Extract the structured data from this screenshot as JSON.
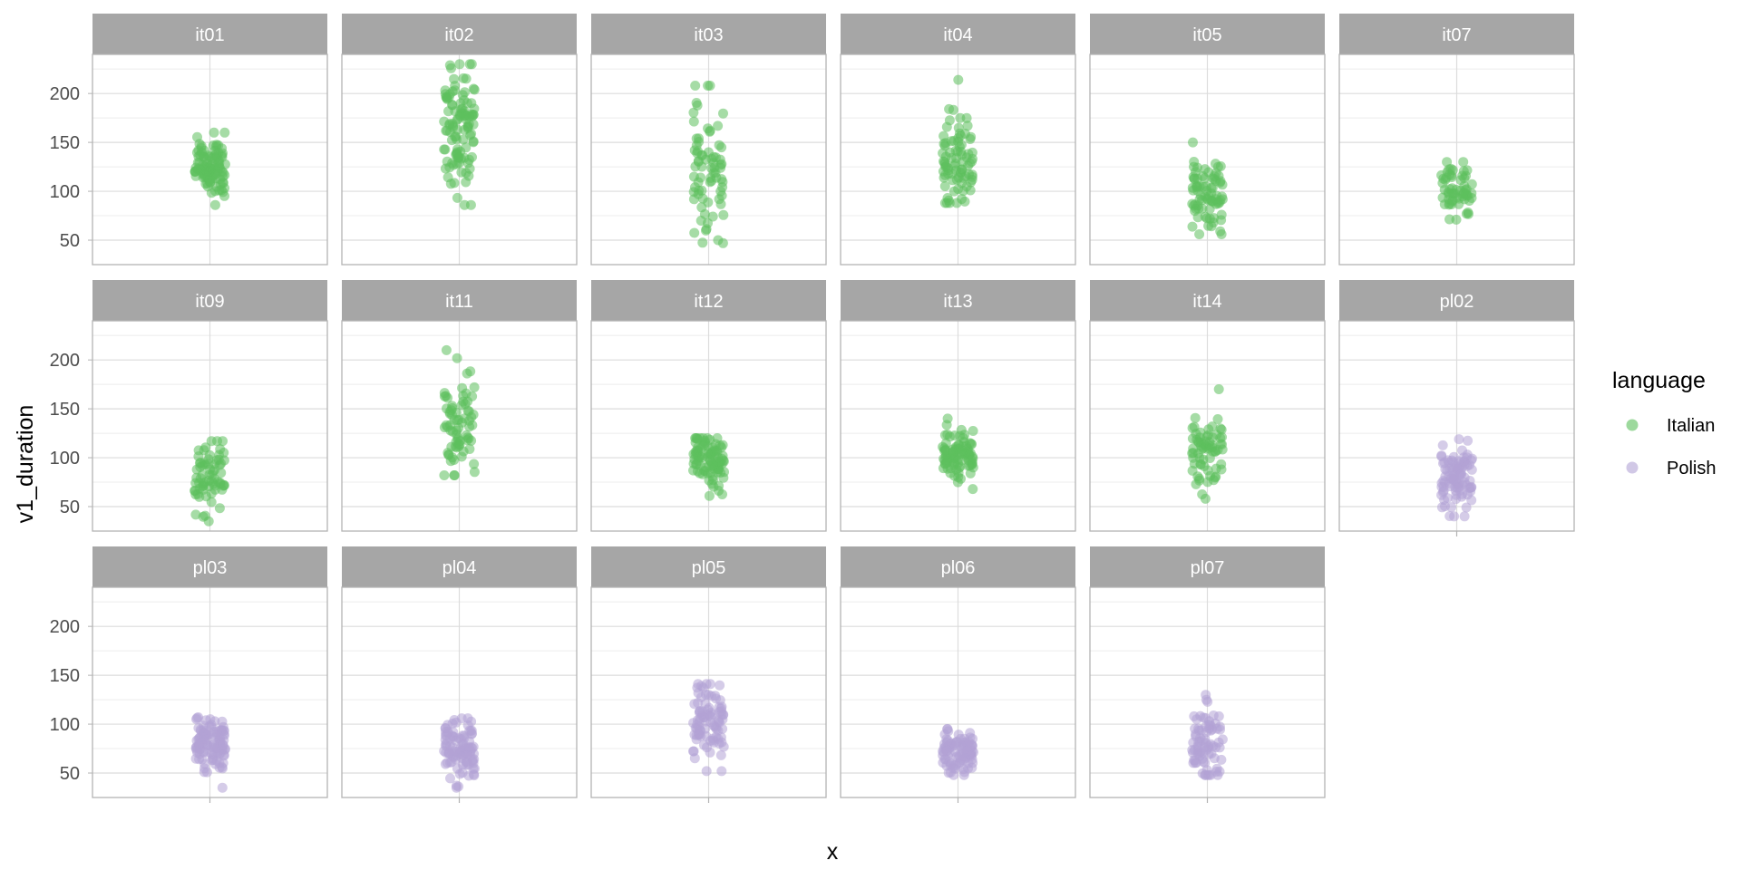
{
  "chart_data": {
    "type": "scatter",
    "subtype": "jittered strip plot, faceted by speaker",
    "xlabel": "x",
    "ylabel": "v1_duration",
    "ylim": [
      25,
      240
    ],
    "yticks": [
      50,
      100,
      150,
      200
    ],
    "grid": true,
    "facet_columns": 6,
    "legend": {
      "title": "language",
      "position": "right",
      "entries": [
        {
          "name": "Italian",
          "color": "#5cbf5c"
        },
        {
          "name": "Polish",
          "color": "#b3a3d6"
        }
      ]
    },
    "panels": [
      {
        "label": "it01",
        "language": "Italian",
        "n": 110,
        "mean": 125,
        "sd": 15,
        "min": 86,
        "max": 160
      },
      {
        "label": "it02",
        "language": "Italian",
        "n": 110,
        "mean": 165,
        "sd": 33,
        "min": 86,
        "max": 230
      },
      {
        "label": "it03",
        "language": "Italian",
        "n": 75,
        "mean": 125,
        "sd": 32,
        "min": 47,
        "max": 208
      },
      {
        "label": "it04",
        "language": "Italian",
        "n": 85,
        "mean": 135,
        "sd": 24,
        "min": 88,
        "max": 214
      },
      {
        "label": "it05",
        "language": "Italian",
        "n": 80,
        "mean": 95,
        "sd": 17,
        "min": 56,
        "max": 150
      },
      {
        "label": "it07",
        "language": "Italian",
        "n": 60,
        "mean": 100,
        "sd": 14,
        "min": 71,
        "max": 130
      },
      {
        "label": "it09",
        "language": "Italian",
        "n": 70,
        "mean": 78,
        "sd": 20,
        "min": 35,
        "max": 117
      },
      {
        "label": "it11",
        "language": "Italian",
        "n": 75,
        "mean": 135,
        "sd": 28,
        "min": 82,
        "max": 210
      },
      {
        "label": "it12",
        "language": "Italian",
        "n": 95,
        "mean": 95,
        "sd": 14,
        "min": 61,
        "max": 120
      },
      {
        "label": "it13",
        "language": "Italian",
        "n": 90,
        "mean": 102,
        "sd": 13,
        "min": 68,
        "max": 140
      },
      {
        "label": "it14",
        "language": "Italian",
        "n": 70,
        "mean": 105,
        "sd": 20,
        "min": 58,
        "max": 170
      },
      {
        "label": "pl02",
        "language": "Polish",
        "n": 95,
        "mean": 80,
        "sd": 16,
        "min": 40,
        "max": 119
      },
      {
        "label": "pl03",
        "language": "Polish",
        "n": 110,
        "mean": 80,
        "sd": 13,
        "min": 35,
        "max": 107
      },
      {
        "label": "pl04",
        "language": "Polish",
        "n": 100,
        "mean": 75,
        "sd": 16,
        "min": 35,
        "max": 106
      },
      {
        "label": "pl05",
        "language": "Polish",
        "n": 90,
        "mean": 100,
        "sd": 18,
        "min": 52,
        "max": 141
      },
      {
        "label": "pl06",
        "language": "Polish",
        "n": 95,
        "mean": 73,
        "sd": 11,
        "min": 48,
        "max": 95
      },
      {
        "label": "pl07",
        "language": "Polish",
        "n": 80,
        "mean": 78,
        "sd": 18,
        "min": 48,
        "max": 130
      }
    ]
  }
}
